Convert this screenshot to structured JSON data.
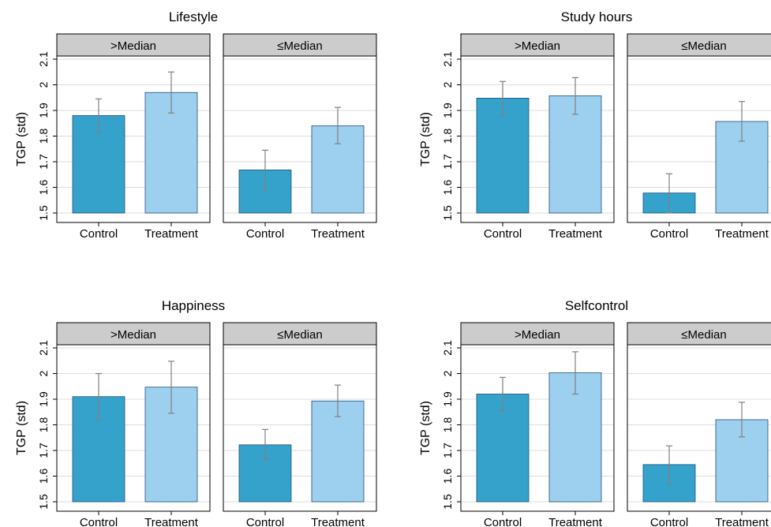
{
  "chart_data": [
    {
      "type": "bar",
      "title": "Lifestyle",
      "ylabel": "TGP (std)",
      "ylim": [
        1.5,
        2.1
      ],
      "yticks": [
        "1.5",
        "1.6",
        "1.7",
        "1.8",
        "1.9",
        "2",
        "2.1"
      ],
      "categories": [
        "Control",
        "Treatment"
      ],
      "colors": [
        "#35a2cb",
        "#9dcfee"
      ],
      "panels": [
        {
          "name": ">Median",
          "values": [
            1.88,
            1.97
          ],
          "ci_low": [
            1.815,
            1.89
          ],
          "ci_high": [
            1.945,
            2.05
          ]
        },
        {
          "name": "≤Median",
          "values": [
            1.668,
            1.84
          ],
          "ci_low": [
            1.59,
            1.77
          ],
          "ci_high": [
            1.745,
            1.912
          ]
        }
      ]
    },
    {
      "type": "bar",
      "title": "Study hours",
      "ylabel": "TGP (std)",
      "ylim": [
        1.5,
        2.1
      ],
      "yticks": [
        "1.5",
        "1.6",
        "1.7",
        "1.8",
        "1.9",
        "2",
        "2.1"
      ],
      "categories": [
        "Control",
        "Treatment"
      ],
      "colors": [
        "#35a2cb",
        "#9dcfee"
      ],
      "panels": [
        {
          "name": ">Median",
          "values": [
            1.948,
            1.957
          ],
          "ci_low": [
            1.88,
            1.885
          ],
          "ci_high": [
            2.013,
            2.028
          ]
        },
        {
          "name": "≤Median",
          "values": [
            1.578,
            1.857
          ],
          "ci_low": [
            1.5,
            1.78
          ],
          "ci_high": [
            1.653,
            1.935
          ]
        }
      ]
    },
    {
      "type": "bar",
      "title": "Happiness",
      "ylabel": "TGP (std)",
      "ylim": [
        1.5,
        2.1
      ],
      "yticks": [
        "1.5",
        "1.6",
        "1.7",
        "1.8",
        "1.9",
        "2",
        "2.1"
      ],
      "categories": [
        "Control",
        "Treatment"
      ],
      "colors": [
        "#35a2cb",
        "#9dcfee"
      ],
      "panels": [
        {
          "name": ">Median",
          "values": [
            1.91,
            1.947
          ],
          "ci_low": [
            1.82,
            1.845
          ],
          "ci_high": [
            2.0,
            2.048
          ]
        },
        {
          "name": "≤Median",
          "values": [
            1.722,
            1.893
          ],
          "ci_low": [
            1.665,
            1.832
          ],
          "ci_high": [
            1.782,
            1.955
          ]
        }
      ]
    },
    {
      "type": "bar",
      "title": "Selfcontrol",
      "ylabel": "TGP (std)",
      "ylim": [
        1.5,
        2.1
      ],
      "yticks": [
        "1.5",
        "1.6",
        "1.7",
        "1.8",
        "1.9",
        "2",
        "2.1"
      ],
      "categories": [
        "Control",
        "Treatment"
      ],
      "colors": [
        "#35a2cb",
        "#9dcfee"
      ],
      "panels": [
        {
          "name": ">Median",
          "values": [
            1.92,
            2.003
          ],
          "ci_low": [
            1.855,
            1.92
          ],
          "ci_high": [
            1.985,
            2.085
          ]
        },
        {
          "name": "≤Median",
          "values": [
            1.645,
            1.82
          ],
          "ci_low": [
            1.57,
            1.753
          ],
          "ci_high": [
            1.718,
            1.888
          ]
        }
      ]
    }
  ]
}
